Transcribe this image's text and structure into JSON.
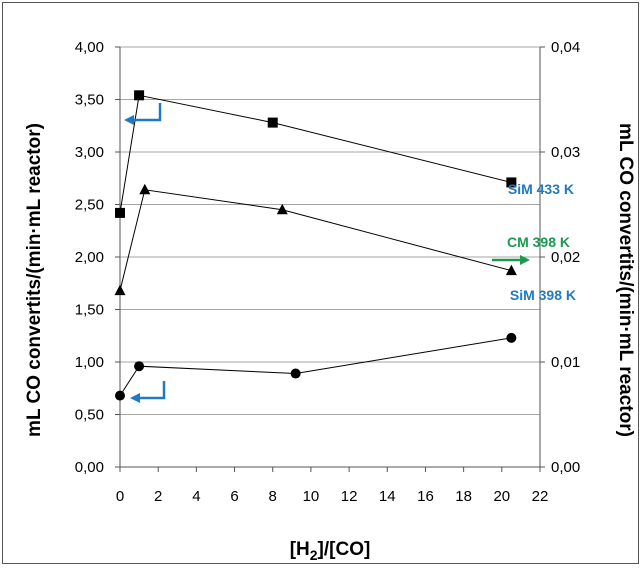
{
  "chart_data": {
    "type": "line",
    "xlabel_main": "[H",
    "xlabel_sub": "2",
    "xlabel_rest": "]/[CO]",
    "ylabel_left": "mL CO convertits/(min·mL reactor)",
    "ylabel_right": "mL CO convertits/(min·mL reactor)",
    "xlim": [
      0,
      22
    ],
    "ylim_left": [
      0,
      4
    ],
    "ylim_right": [
      0,
      0.04
    ],
    "x_ticks": [
      0,
      2,
      4,
      6,
      8,
      10,
      12,
      14,
      16,
      18,
      20,
      22
    ],
    "x_tick_labels": [
      "0",
      "2",
      "4",
      "6",
      "8",
      "10",
      "12",
      "14",
      "16",
      "18",
      "20",
      "22"
    ],
    "y_left_ticks": [
      0,
      0.5,
      1.0,
      1.5,
      2.0,
      2.5,
      3.0,
      3.5,
      4.0
    ],
    "y_left_tick_labels": [
      "0,00",
      "0,50",
      "1,00",
      "1,50",
      "2,00",
      "2,50",
      "3,00",
      "3,50",
      "4,00"
    ],
    "y_right_ticks": [
      0,
      0.01,
      0.02,
      0.03,
      0.04
    ],
    "y_right_tick_labels": [
      "0,00",
      "0,01",
      "0,02",
      "0,03",
      "0,04"
    ],
    "grid": "horizontal",
    "series": [
      {
        "name": "SiM 433 K",
        "axis": "left",
        "marker": "square",
        "x": [
          0,
          1,
          8,
          20.5
        ],
        "y": [
          2.42,
          3.54,
          3.28,
          2.71
        ],
        "label_color": "#1f7ac2",
        "arrow": "left"
      },
      {
        "name": "CM 398 K",
        "axis": "right",
        "marker": "triangle",
        "x": [
          0,
          1.3,
          8.5,
          20.5
        ],
        "y": [
          0.0168,
          0.0264,
          0.0245,
          0.0187
        ],
        "label_color": "#1a9a4e",
        "arrow": "right"
      },
      {
        "name": "SiM 398 K",
        "axis": "left",
        "marker": "circle",
        "x": [
          0,
          1,
          9.2,
          20.5
        ],
        "y": [
          0.68,
          0.96,
          0.89,
          1.23
        ],
        "label_color": "#1f7ac2",
        "arrow": "left"
      }
    ]
  }
}
